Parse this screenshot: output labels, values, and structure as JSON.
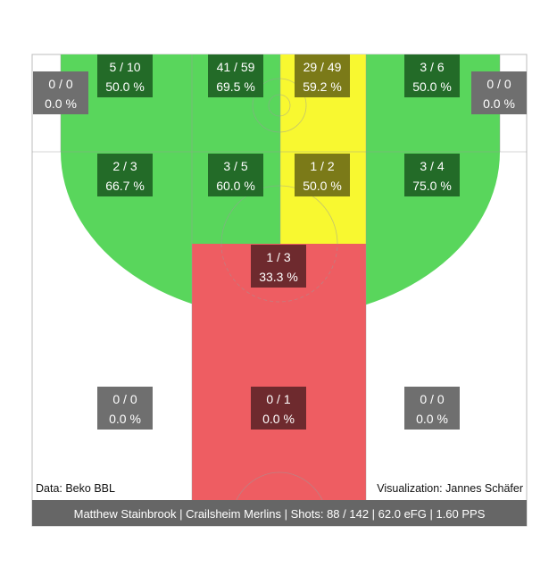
{
  "chart_data": {
    "type": "heatmap",
    "player": "Matthew Stainbrook",
    "team": "Crailsheim Merlins",
    "shots_made": 88,
    "shots_attempted": 142,
    "efg": "62.0",
    "pps": "1.60",
    "footer_text": "Matthew Stainbrook | Crailsheim Merlins | Shots: 88 / 142 | 62.0 eFG | 1.60 PPS",
    "source_text": "Data: Beko BBL",
    "credit_text": "Visualization: Jannes Schäfer",
    "colors": {
      "green": "#59d65c",
      "yellow": "#f8f830",
      "red": "#ee5d62",
      "label_bg_dark_green": "#236b28",
      "label_bg_olive": "#7b7a18",
      "label_bg_dark_red": "#6e2a2e",
      "label_bg_grey": "#6f6f6f",
      "footer_bg": "#666666"
    },
    "zones": [
      {
        "id": "corner-left-three",
        "made": 0,
        "att": 0,
        "ratio": "0 / 0",
        "pct": "0.0 %",
        "color": "white"
      },
      {
        "id": "wing-left-three",
        "made": 5,
        "att": 10,
        "ratio": "5 / 10",
        "pct": "50.0 %",
        "color": "green"
      },
      {
        "id": "center-left-three",
        "made": 41,
        "att": 59,
        "ratio": "41 / 59",
        "pct": "69.5 %",
        "color": "green"
      },
      {
        "id": "center-right-three",
        "made": 29,
        "att": 49,
        "ratio": "29 / 49",
        "pct": "59.2 %",
        "color": "yellow"
      },
      {
        "id": "wing-right-three",
        "made": 3,
        "att": 6,
        "ratio": "3 / 6",
        "pct": "50.0 %",
        "color": "green"
      },
      {
        "id": "corner-right-three",
        "made": 0,
        "att": 0,
        "ratio": "0 / 0",
        "pct": "0.0 %",
        "color": "white"
      },
      {
        "id": "left-long-two",
        "made": 2,
        "att": 3,
        "ratio": "2 / 3",
        "pct": "66.7 %",
        "color": "green"
      },
      {
        "id": "center-left-mid",
        "made": 3,
        "att": 5,
        "ratio": "3 / 5",
        "pct": "60.0 %",
        "color": "green"
      },
      {
        "id": "center-right-mid",
        "made": 1,
        "att": 2,
        "ratio": "1 / 2",
        "pct": "50.0 %",
        "color": "yellow"
      },
      {
        "id": "right-long-two",
        "made": 3,
        "att": 4,
        "ratio": "3 / 4",
        "pct": "75.0 %",
        "color": "green"
      },
      {
        "id": "paint-upper",
        "made": 1,
        "att": 3,
        "ratio": "1 / 3",
        "pct": "33.3 %",
        "color": "red"
      },
      {
        "id": "baseline-left-two",
        "made": 0,
        "att": 0,
        "ratio": "0 / 0",
        "pct": "0.0 %",
        "color": "white"
      },
      {
        "id": "restricted-area",
        "made": 0,
        "att": 1,
        "ratio": "0 / 1",
        "pct": "0.0 %",
        "color": "red"
      },
      {
        "id": "baseline-right-two",
        "made": 0,
        "att": 0,
        "ratio": "0 / 0",
        "pct": "0.0 %",
        "color": "white"
      }
    ]
  }
}
